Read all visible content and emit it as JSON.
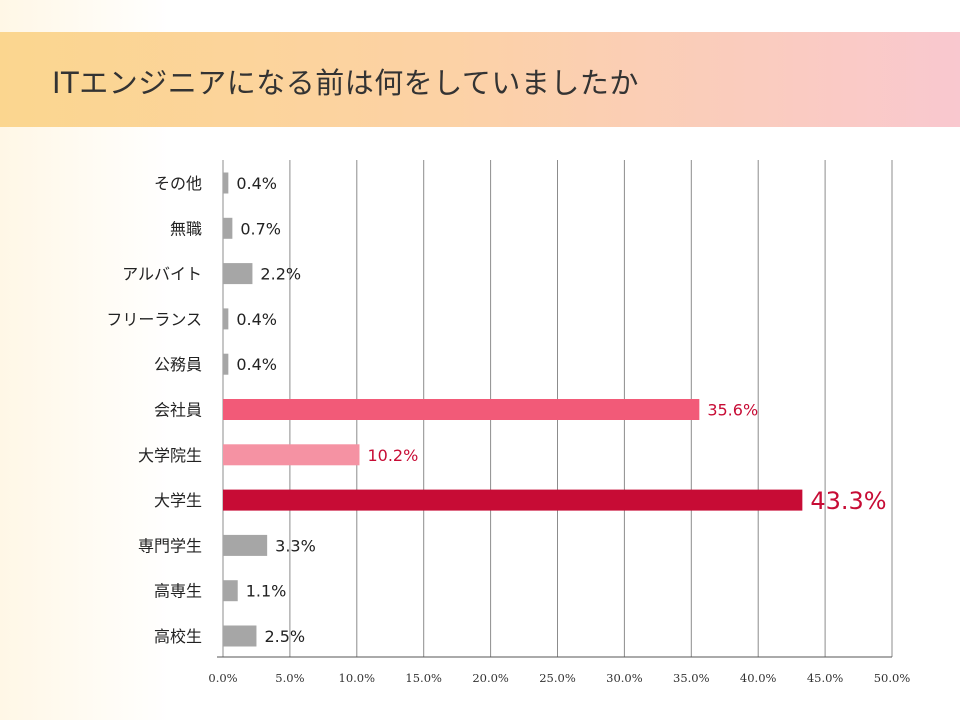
{
  "header": {
    "title": "ITエンジニアになる前は何をしていましたか"
  },
  "chart_data": {
    "type": "bar",
    "orientation": "horizontal",
    "title": "ITエンジニアになる前は何をしていましたか",
    "categories": [
      "その他",
      "無職",
      "アルバイト",
      "フリーランス",
      "公務員",
      "会社員",
      "大学院生",
      "大学生",
      "専門学生",
      "高専生",
      "高校生"
    ],
    "values": [
      0.4,
      0.7,
      2.2,
      0.4,
      0.4,
      35.6,
      10.2,
      43.3,
      3.3,
      1.1,
      2.5
    ],
    "labels": [
      "0.4%",
      "0.7%",
      "2.2%",
      "0.4%",
      "0.4%",
      "35.6%",
      "10.2%",
      "43.3%",
      "3.3%",
      "1.1%",
      "2.5%"
    ],
    "xlim": [
      0,
      50
    ],
    "xticks": [
      "0.0%",
      "5.0%",
      "10.0%",
      "15.0%",
      "20.0%",
      "25.0%",
      "30.0%",
      "35.0%",
      "40.0%",
      "45.0%",
      "50.0%"
    ],
    "grid": true,
    "colors": {
      "default": "#a6a6a6",
      "会社員": "#f25a78",
      "大学院生": "#f592a3",
      "大学生": "#c70c35",
      "label_default": "#222222",
      "label_highlight": "#c70c35",
      "grid": "#8c8c8c"
    }
  }
}
